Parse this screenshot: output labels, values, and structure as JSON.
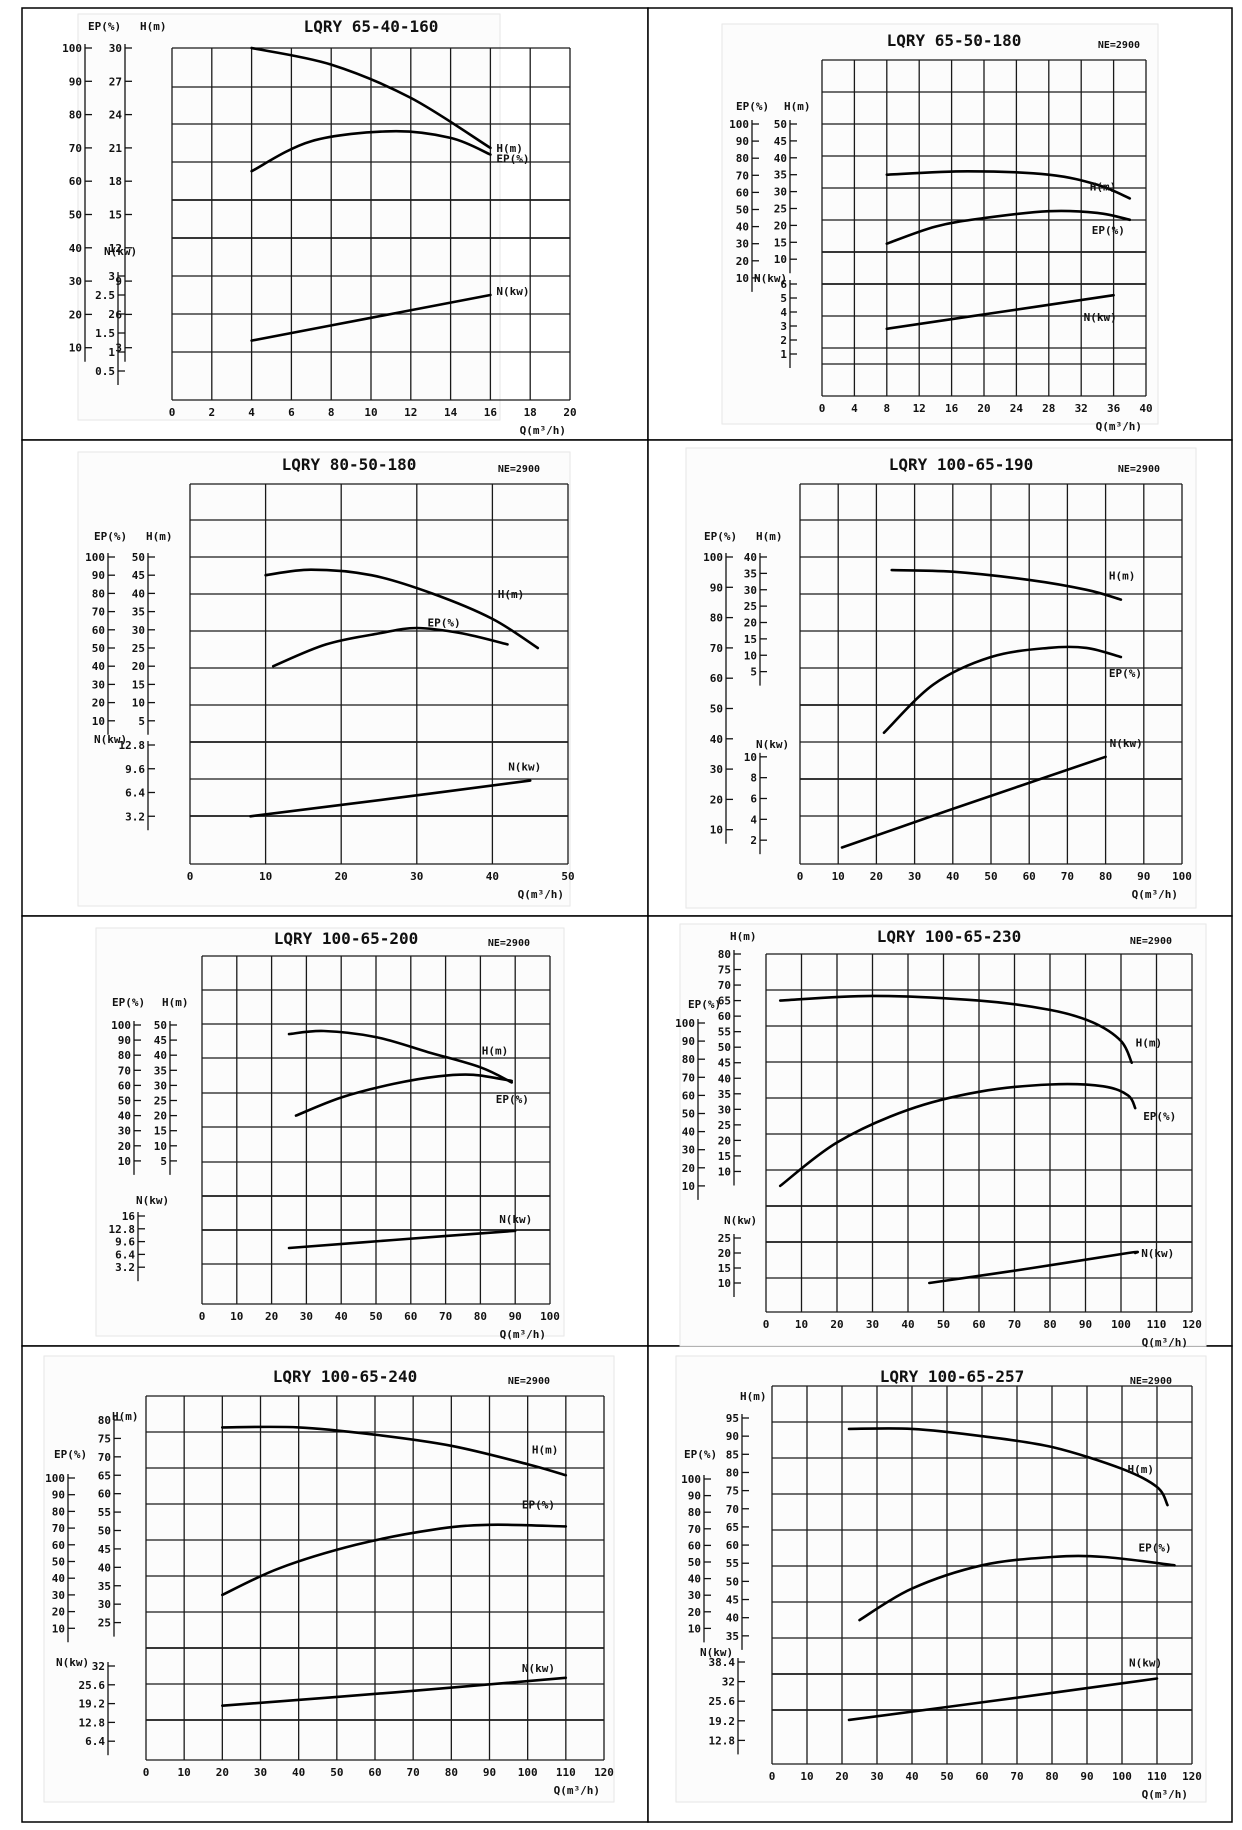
{
  "chart_data": [
    {
      "type": "line",
      "title": "LQRY 65-40-160",
      "ne": "",
      "xlabel": "Q(m³/h)",
      "x_ticks": [
        0,
        2,
        4,
        6,
        8,
        10,
        12,
        14,
        16,
        18,
        20
      ],
      "xlim": [
        0,
        20
      ],
      "axes": {
        "EP": {
          "label": "EP(%)",
          "ticks": [
            10,
            20,
            30,
            40,
            50,
            60,
            70,
            80,
            90,
            100
          ],
          "range": [
            0,
            100
          ]
        },
        "H": {
          "label": "H(m)",
          "ticks": [
            3,
            6,
            9,
            12,
            15,
            18,
            21,
            24,
            27,
            30
          ],
          "range": [
            0,
            30
          ]
        },
        "N": {
          "label": "N(kw)",
          "ticks": [
            0.5,
            1,
            1.5,
            2,
            2.5,
            3
          ],
          "range": [
            0,
            3
          ]
        }
      },
      "series": [
        {
          "name": "H(m)",
          "axis": "H",
          "x": [
            4,
            8,
            12,
            16
          ],
          "y": [
            30,
            28.5,
            25.5,
            21
          ]
        },
        {
          "name": "EP(%)",
          "axis": "EP",
          "x": [
            4,
            7,
            11,
            14,
            16
          ],
          "y": [
            63,
            72,
            75,
            73,
            68
          ]
        },
        {
          "name": "N(kw)",
          "axis": "N",
          "x": [
            4,
            10,
            16
          ],
          "y": [
            1.3,
            1.9,
            2.5
          ]
        }
      ]
    },
    {
      "type": "line",
      "title": "LQRY 65-50-180",
      "ne": "NE=2900",
      "xlabel": "Q(m³/h)",
      "x_ticks": [
        0,
        4,
        8,
        12,
        16,
        20,
        24,
        28,
        32,
        36,
        40
      ],
      "xlim": [
        0,
        40
      ],
      "axes": {
        "EP": {
          "label": "EP(%)",
          "ticks": [
            10,
            20,
            30,
            40,
            50,
            60,
            70,
            80,
            90,
            100
          ],
          "range": [
            0,
            100
          ]
        },
        "H": {
          "label": "H(m)",
          "ticks": [
            10,
            15,
            20,
            25,
            30,
            35,
            40,
            45,
            50
          ],
          "range": [
            0,
            50
          ]
        },
        "N": {
          "label": "N(kw)",
          "ticks": [
            1,
            2,
            3,
            4,
            5,
            6
          ],
          "range": [
            0,
            6
          ]
        }
      },
      "series": [
        {
          "name": "H(m)",
          "axis": "H",
          "x": [
            8,
            18,
            28,
            34,
            38
          ],
          "y": [
            35,
            36,
            35,
            32,
            28
          ]
        },
        {
          "name": "EP(%)",
          "axis": "EP",
          "x": [
            8,
            14,
            20,
            28,
            34,
            38
          ],
          "y": [
            30,
            40,
            45,
            49,
            48,
            44
          ]
        },
        {
          "name": "N(kw)",
          "axis": "N",
          "x": [
            8,
            22,
            36
          ],
          "y": [
            2.8,
            4,
            5.2
          ]
        }
      ]
    },
    {
      "type": "line",
      "title": "LQRY 80-50-180",
      "ne": "NE=2900",
      "xlabel": "Q(m³/h)",
      "x_ticks": [
        0,
        10,
        20,
        30,
        40,
        50
      ],
      "xlim": [
        0,
        50
      ],
      "axes": {
        "EP": {
          "label": "EP(%)",
          "ticks": [
            10,
            20,
            30,
            40,
            50,
            60,
            70,
            80,
            90,
            100
          ],
          "range": [
            0,
            100
          ]
        },
        "H": {
          "label": "H(m)",
          "ticks": [
            5,
            10,
            15,
            20,
            25,
            30,
            35,
            40,
            45,
            50
          ],
          "range": [
            0,
            50
          ]
        },
        "N": {
          "label": "N(kw)",
          "ticks": [
            3.2,
            6.4,
            9.6,
            12.8
          ],
          "range": [
            0,
            12.8
          ]
        }
      },
      "series": [
        {
          "name": "H(m)",
          "axis": "H",
          "x": [
            10,
            16,
            24,
            32,
            40,
            46
          ],
          "y": [
            45,
            46.5,
            45,
            40,
            33,
            25
          ]
        },
        {
          "name": "EP(%)",
          "axis": "EP",
          "x": [
            11,
            18,
            25,
            30,
            36,
            42
          ],
          "y": [
            40,
            52,
            58,
            61,
            58,
            52
          ]
        },
        {
          "name": "N(kw)",
          "axis": "N",
          "x": [
            8,
            26,
            45
          ],
          "y": [
            3.2,
            5.5,
            8
          ]
        }
      ]
    },
    {
      "type": "line",
      "title": "LQRY 100-65-190",
      "ne": "NE=2900",
      "xlabel": "Q(m³/h)",
      "x_ticks": [
        0,
        10,
        20,
        30,
        40,
        50,
        60,
        70,
        80,
        90,
        100
      ],
      "xlim": [
        0,
        100
      ],
      "axes": {
        "EP": {
          "label": "EP(%)",
          "ticks": [
            10,
            20,
            30,
            40,
            50,
            60,
            70,
            80,
            90,
            100
          ],
          "range": [
            0,
            100
          ]
        },
        "H": {
          "label": "H(m)",
          "ticks": [
            5,
            10,
            15,
            20,
            25,
            30,
            35,
            40
          ],
          "range": [
            0,
            40
          ]
        },
        "N": {
          "label": "N(kw)",
          "ticks": [
            2,
            4,
            6,
            8,
            10
          ],
          "range": [
            0,
            12
          ]
        }
      },
      "series": [
        {
          "name": "H(m)",
          "axis": "H",
          "x": [
            24,
            40,
            60,
            75,
            84
          ],
          "y": [
            36,
            35.5,
            33,
            30,
            27
          ]
        },
        {
          "name": "EP(%)",
          "axis": "EP",
          "x": [
            22,
            35,
            50,
            65,
            75,
            84
          ],
          "y": [
            42,
            58,
            67,
            70,
            70,
            67
          ]
        },
        {
          "name": "N(kw)",
          "axis": "N",
          "x": [
            11,
            40,
            80
          ],
          "y": [
            1.3,
            5,
            10
          ]
        }
      ]
    },
    {
      "type": "line",
      "title": "LQRY 100-65-200",
      "ne": "NE=2900",
      "xlabel": "Q(m³/h)",
      "x_ticks": [
        0,
        10,
        20,
        30,
        40,
        50,
        60,
        70,
        80,
        90,
        100
      ],
      "xlim": [
        0,
        100
      ],
      "axes": {
        "EP": {
          "label": "EP(%)",
          "ticks": [
            10,
            20,
            30,
            40,
            50,
            60,
            70,
            80,
            90,
            100
          ],
          "range": [
            0,
            100
          ]
        },
        "H": {
          "label": "H(m)",
          "ticks": [
            5,
            10,
            15,
            20,
            25,
            30,
            35,
            40,
            45,
            50
          ],
          "range": [
            0,
            50
          ]
        },
        "N": {
          "label": "N(kw)",
          "ticks": [
            3.2,
            6.4,
            9.6,
            12.8,
            16
          ],
          "range": [
            0,
            16
          ]
        }
      },
      "series": [
        {
          "name": "H(m)",
          "axis": "H",
          "x": [
            25,
            35,
            50,
            65,
            80,
            89
          ],
          "y": [
            47,
            48,
            46,
            41,
            36,
            31
          ]
        },
        {
          "name": "EP(%)",
          "axis": "EP",
          "x": [
            27,
            40,
            55,
            68,
            78,
            89
          ],
          "y": [
            40,
            52,
            61,
            66,
            67,
            63
          ]
        },
        {
          "name": "N(kw)",
          "axis": "N",
          "x": [
            25,
            55,
            90
          ],
          "y": [
            8,
            10,
            12.3
          ]
        }
      ]
    },
    {
      "type": "line",
      "title": "LQRY 100-65-230",
      "ne": "NE=2900",
      "xlabel": "Q(m³/h)",
      "x_ticks": [
        0,
        10,
        20,
        30,
        40,
        50,
        60,
        70,
        80,
        90,
        100,
        110,
        120
      ],
      "xlim": [
        0,
        120
      ],
      "axes": {
        "EP": {
          "label": "EP(%)",
          "ticks": [
            10,
            20,
            30,
            40,
            50,
            60,
            70,
            80,
            90,
            100
          ],
          "range": [
            0,
            100
          ]
        },
        "H": {
          "label": "H(m)",
          "ticks": [
            10,
            15,
            20,
            25,
            30,
            35,
            40,
            45,
            50,
            55,
            60,
            65,
            70,
            75,
            80
          ],
          "range": [
            5,
            80
          ]
        },
        "N": {
          "label": "N(kw)",
          "ticks": [
            10,
            15,
            20,
            25
          ],
          "range": [
            5,
            25
          ]
        }
      },
      "series": [
        {
          "name": "H(m)",
          "axis": "H",
          "x": [
            4,
            30,
            60,
            80,
            92,
            100,
            103
          ],
          "y": [
            65,
            66.5,
            65,
            62,
            58,
            52,
            45
          ]
        },
        {
          "name": "EP(%)",
          "axis": "EP",
          "x": [
            4,
            20,
            40,
            60,
            80,
            95,
            102,
            104
          ],
          "y": [
            10,
            34,
            52,
            62,
            66,
            65,
            60,
            53
          ]
        },
        {
          "name": "N(kw)",
          "axis": "N",
          "x": [
            46,
            75,
            102,
            104
          ],
          "y": [
            10,
            15,
            20,
            20
          ]
        }
      ]
    },
    {
      "type": "line",
      "title": "LQRY 100-65-240",
      "ne": "NE=2900",
      "xlabel": "Q(m³/h)",
      "x_ticks": [
        0,
        10,
        20,
        30,
        40,
        50,
        60,
        70,
        80,
        90,
        100,
        110,
        120
      ],
      "xlim": [
        0,
        120
      ],
      "axes": {
        "EP": {
          "label": "EP(%)",
          "ticks": [
            10,
            20,
            30,
            40,
            50,
            60,
            70,
            80,
            90,
            100
          ],
          "range": [
            0,
            100
          ]
        },
        "H": {
          "label": "H(m)",
          "ticks": [
            25,
            30,
            35,
            40,
            45,
            50,
            55,
            60,
            65,
            70,
            75,
            80
          ],
          "range": [
            20,
            80
          ]
        },
        "N": {
          "label": "N(kw)",
          "ticks": [
            6.4,
            12.8,
            19.2,
            25.6,
            32
          ],
          "range": [
            0,
            32
          ]
        }
      },
      "series": [
        {
          "name": "H(m)",
          "axis": "H",
          "x": [
            20,
            40,
            60,
            80,
            100,
            110
          ],
          "y": [
            78,
            78,
            76,
            73,
            68,
            65
          ]
        },
        {
          "name": "EP(%)",
          "axis": "EP",
          "x": [
            20,
            35,
            55,
            75,
            90,
            110
          ],
          "y": [
            30,
            46,
            60,
            69,
            72,
            71
          ]
        },
        {
          "name": "N(kw)",
          "axis": "N",
          "x": [
            20,
            65,
            110
          ],
          "y": [
            18.5,
            23,
            28
          ]
        }
      ]
    },
    {
      "type": "line",
      "title": "LQRY 100-65-257",
      "ne": "NE=2900",
      "xlabel": "Q(m³/h)",
      "x_ticks": [
        0,
        10,
        20,
        30,
        40,
        50,
        60,
        70,
        80,
        90,
        100,
        110,
        120
      ],
      "xlim": [
        0,
        120
      ],
      "axes": {
        "EP": {
          "label": "EP(%)",
          "ticks": [
            10,
            20,
            30,
            40,
            50,
            60,
            70,
            80,
            90,
            100
          ],
          "range": [
            0,
            100
          ]
        },
        "H": {
          "label": "H(m)",
          "ticks": [
            35,
            40,
            45,
            50,
            55,
            60,
            65,
            70,
            75,
            80,
            85,
            90,
            95
          ],
          "range": [
            30,
            95
          ]
        },
        "N": {
          "label": "N(kw)",
          "ticks": [
            12.8,
            19.2,
            25.6,
            32,
            38.4
          ],
          "range": [
            6.4,
            38.4
          ]
        }
      },
      "series": [
        {
          "name": "H(m)",
          "axis": "H",
          "x": [
            22,
            40,
            60,
            80,
            100,
            110,
            113
          ],
          "y": [
            92,
            92,
            90,
            87,
            81,
            76,
            71
          ]
        },
        {
          "name": "EP(%)",
          "axis": "EP",
          "x": [
            25,
            40,
            60,
            80,
            95,
            115
          ],
          "y": [
            15,
            34,
            48,
            53,
            53,
            48
          ]
        },
        {
          "name": "N(kw)",
          "axis": "N",
          "x": [
            22,
            65,
            110
          ],
          "y": [
            19.5,
            26,
            33
          ]
        }
      ]
    }
  ]
}
